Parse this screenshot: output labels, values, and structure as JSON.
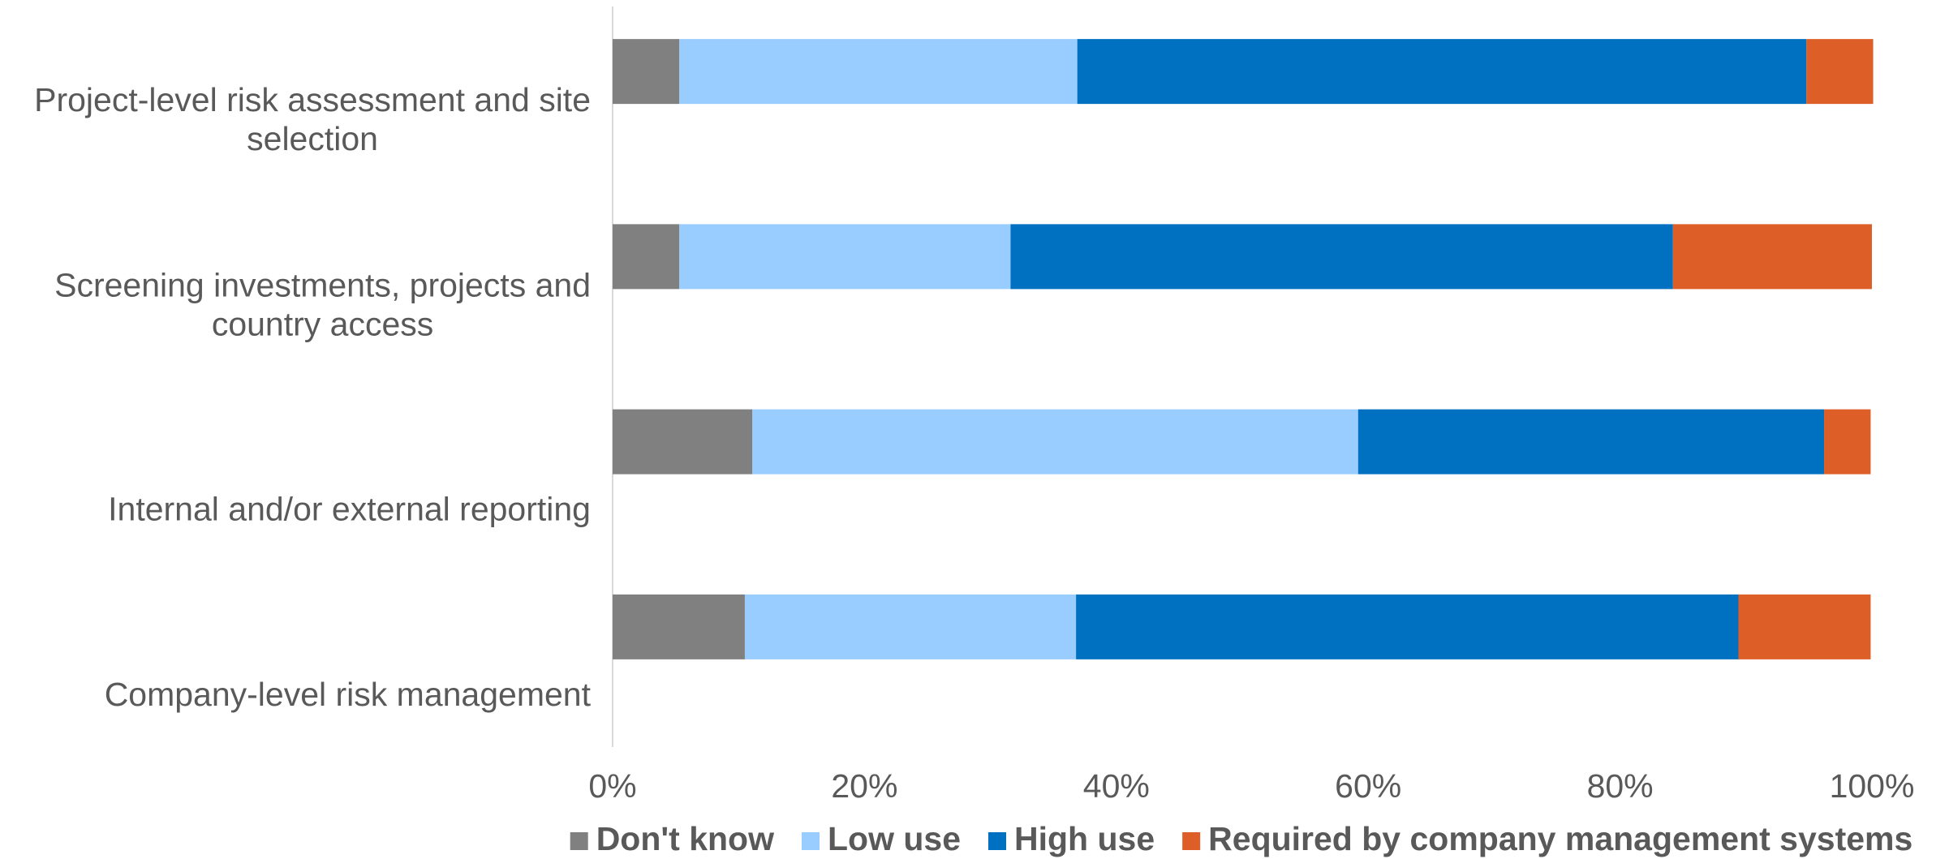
{
  "chart_data": {
    "type": "stacked-bar-horizontal",
    "categories": [
      "Project-level risk assessment and site selection",
      "Screening investments, projects and country access",
      "Internal and/or external reporting",
      "Company-level risk management"
    ],
    "series": [
      {
        "name": "Don't know",
        "color": "#808080",
        "values": [
          5.3,
          5.3,
          11.1,
          10.5
        ]
      },
      {
        "name": "Low use",
        "color": "#99ccff",
        "values": [
          31.6,
          26.3,
          48.1,
          26.3
        ]
      },
      {
        "name": "High use",
        "color": "#0070c0",
        "values": [
          57.9,
          52.6,
          37.0,
          52.6
        ]
      },
      {
        "name": "Required by company management systems",
        "color": "#dd5f27",
        "values": [
          5.3,
          15.8,
          3.7,
          10.5
        ]
      }
    ],
    "xlim": [
      0,
      100
    ],
    "xticks": [
      {
        "value": 0,
        "label": "0%"
      },
      {
        "value": 20,
        "label": "20%"
      },
      {
        "value": 40,
        "label": "40%"
      },
      {
        "value": 60,
        "label": "60%"
      },
      {
        "value": 80,
        "label": "80%"
      },
      {
        "value": 100,
        "label": "100%"
      }
    ],
    "legend": "bottom"
  }
}
